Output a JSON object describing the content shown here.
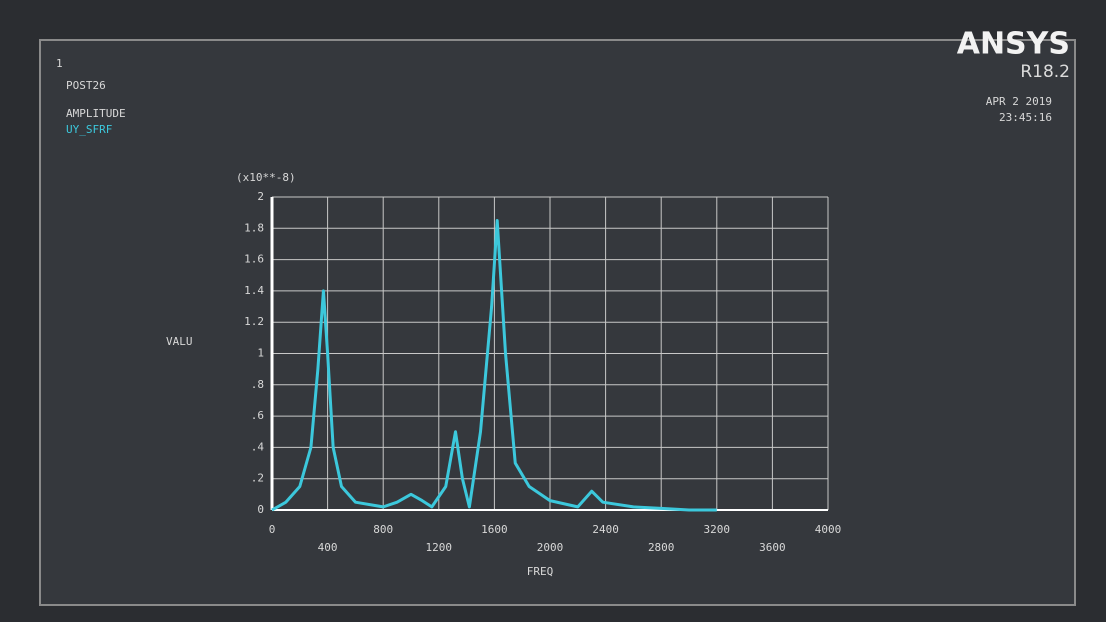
{
  "chart_data": {
    "type": "line",
    "window_number": "1",
    "header": [
      "POST26",
      "AMPLITUDE"
    ],
    "brand": "ANSYS",
    "version": "R18.2",
    "date": "APR  2 2019",
    "time": "23:45:16",
    "y_multiplier": "(x10**-8)",
    "ylabel": "VALU",
    "xlabel": "FREQ",
    "x": [
      0,
      100,
      200,
      280,
      330,
      370,
      400,
      440,
      500,
      600,
      800,
      900,
      1000,
      1080,
      1150,
      1250,
      1320,
      1370,
      1420,
      1500,
      1580,
      1620,
      1680,
      1750,
      1850,
      2000,
      2200,
      2300,
      2380,
      2600,
      2800,
      3000,
      3200
    ],
    "series": [
      {
        "name": "UY_SFRF",
        "color": "#3cc8dc",
        "values": [
          0,
          0.05,
          0.15,
          0.4,
          0.9,
          1.4,
          1.0,
          0.4,
          0.15,
          0.05,
          0.02,
          0.05,
          0.1,
          0.06,
          0.02,
          0.15,
          0.5,
          0.2,
          0.02,
          0.5,
          1.3,
          1.85,
          1.0,
          0.3,
          0.15,
          0.06,
          0.02,
          0.12,
          0.05,
          0.02,
          0.01,
          0,
          0
        ]
      }
    ],
    "xlim": [
      0,
      4000
    ],
    "xticks": [
      0,
      400,
      800,
      1200,
      1600,
      2000,
      2400,
      2800,
      3200,
      3600,
      4000
    ],
    "ylim": [
      0,
      2
    ],
    "yticks": [
      0,
      {
        "value": 0.2,
        "label": ".2"
      },
      {
        "value": 0.4,
        "label": ".4"
      },
      {
        "value": 0.6,
        "label": ".6"
      },
      {
        "value": 0.8,
        "label": ".8"
      },
      1,
      1.2,
      1.4,
      1.6,
      1.8,
      2
    ],
    "grid": true
  }
}
